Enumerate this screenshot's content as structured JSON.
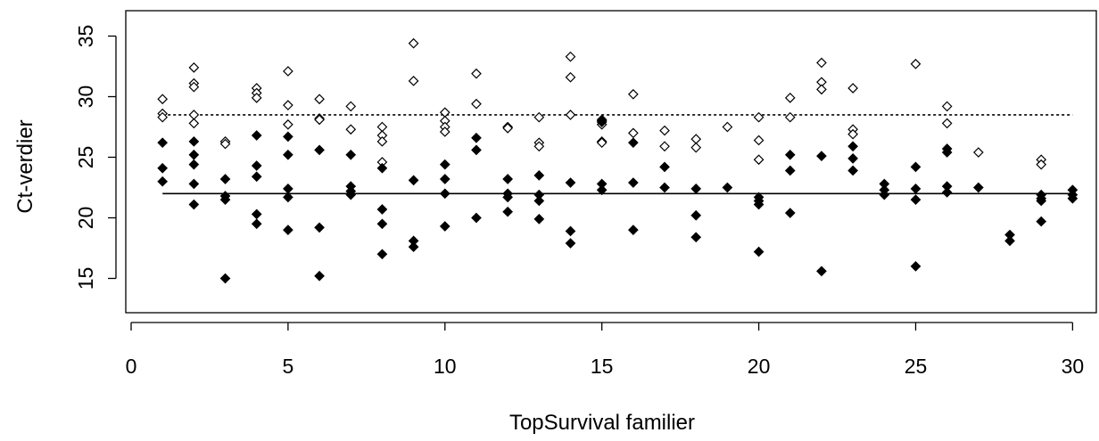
{
  "chart_data": {
    "type": "scatter",
    "title": "",
    "xlabel": "TopSurvival familier",
    "ylabel": "Ct-verdier",
    "xlim": [
      0,
      30
    ],
    "ylim": [
      12.5,
      36
    ],
    "x_ticks": [
      "0",
      "5",
      "10",
      "15",
      "20",
      "25",
      "30"
    ],
    "y_ticks": [
      "15",
      "20",
      "25",
      "30",
      "35"
    ],
    "grid": false,
    "legend": "none",
    "series": [
      {
        "marker": "open-diamond",
        "color": "#000000",
        "points": [
          [
            1,
            29.8
          ],
          [
            1,
            28.6
          ],
          [
            1,
            28.3
          ],
          [
            2,
            32.4
          ],
          [
            2,
            31.1
          ],
          [
            2,
            30.8
          ],
          [
            2,
            28.5
          ],
          [
            2,
            27.8
          ],
          [
            3,
            26.3
          ],
          [
            3,
            26.1
          ],
          [
            4,
            30.7
          ],
          [
            4,
            30.3
          ],
          [
            4,
            29.9
          ],
          [
            5,
            32.1
          ],
          [
            5,
            29.3
          ],
          [
            5,
            27.7
          ],
          [
            6,
            29.8
          ],
          [
            6,
            28.2
          ],
          [
            6,
            28.1
          ],
          [
            7,
            29.2
          ],
          [
            7,
            27.3
          ],
          [
            8,
            27.5
          ],
          [
            8,
            26.8
          ],
          [
            8,
            26.3
          ],
          [
            8,
            24.6
          ],
          [
            9,
            34.4
          ],
          [
            9,
            31.3
          ],
          [
            10,
            28.7
          ],
          [
            10,
            28.0
          ],
          [
            10,
            27.5
          ],
          [
            10,
            27.1
          ],
          [
            11,
            31.9
          ],
          [
            11,
            29.4
          ],
          [
            12,
            27.5
          ],
          [
            12,
            27.4
          ],
          [
            13,
            28.3
          ],
          [
            13,
            26.2
          ],
          [
            13,
            25.9
          ],
          [
            14,
            33.3
          ],
          [
            14,
            31.6
          ],
          [
            14,
            28.5
          ],
          [
            15,
            28.0
          ],
          [
            15,
            27.7
          ],
          [
            15,
            26.3
          ],
          [
            15,
            26.2
          ],
          [
            16,
            30.2
          ],
          [
            16,
            27.0
          ],
          [
            17,
            27.2
          ],
          [
            17,
            25.9
          ],
          [
            18,
            26.5
          ],
          [
            18,
            25.8
          ],
          [
            19,
            27.5
          ],
          [
            20,
            28.3
          ],
          [
            20,
            26.4
          ],
          [
            20,
            24.8
          ],
          [
            21,
            29.9
          ],
          [
            21,
            28.3
          ],
          [
            22,
            32.8
          ],
          [
            22,
            31.2
          ],
          [
            22,
            30.6
          ],
          [
            23,
            30.7
          ],
          [
            23,
            27.3
          ],
          [
            23,
            26.9
          ],
          [
            25,
            32.7
          ],
          [
            26,
            29.2
          ],
          [
            26,
            27.8
          ],
          [
            27,
            25.4
          ],
          [
            29,
            24.8
          ],
          [
            29,
            24.4
          ]
        ]
      },
      {
        "marker": "filled-diamond",
        "color": "#000000",
        "points": [
          [
            1,
            26.2
          ],
          [
            1,
            24.1
          ],
          [
            1,
            23.0
          ],
          [
            2,
            26.3
          ],
          [
            2,
            25.2
          ],
          [
            2,
            24.4
          ],
          [
            2,
            22.8
          ],
          [
            2,
            21.1
          ],
          [
            3,
            23.2
          ],
          [
            3,
            21.8
          ],
          [
            3,
            21.5
          ],
          [
            3,
            15.0
          ],
          [
            4,
            26.8
          ],
          [
            4,
            24.3
          ],
          [
            4,
            23.4
          ],
          [
            4,
            20.3
          ],
          [
            4,
            19.5
          ],
          [
            5,
            26.7
          ],
          [
            5,
            25.2
          ],
          [
            5,
            22.4
          ],
          [
            5,
            21.7
          ],
          [
            5,
            19.0
          ],
          [
            6,
            25.6
          ],
          [
            6,
            19.2
          ],
          [
            6,
            15.2
          ],
          [
            7,
            25.2
          ],
          [
            7,
            22.6
          ],
          [
            7,
            22.2
          ],
          [
            7,
            21.9
          ],
          [
            8,
            24.1
          ],
          [
            8,
            20.7
          ],
          [
            8,
            19.5
          ],
          [
            8,
            17.0
          ],
          [
            9,
            23.1
          ],
          [
            9,
            18.1
          ],
          [
            9,
            17.6
          ],
          [
            10,
            24.4
          ],
          [
            10,
            23.2
          ],
          [
            10,
            22.0
          ],
          [
            10,
            19.3
          ],
          [
            11,
            26.6
          ],
          [
            11,
            25.6
          ],
          [
            11,
            20.0
          ],
          [
            12,
            23.2
          ],
          [
            12,
            22.0
          ],
          [
            12,
            21.7
          ],
          [
            12,
            20.5
          ],
          [
            13,
            23.5
          ],
          [
            13,
            21.9
          ],
          [
            13,
            21.4
          ],
          [
            13,
            19.9
          ],
          [
            14,
            22.9
          ],
          [
            14,
            18.9
          ],
          [
            14,
            17.9
          ],
          [
            15,
            28.1
          ],
          [
            15,
            27.9
          ],
          [
            15,
            22.8
          ],
          [
            15,
            22.3
          ],
          [
            16,
            26.2
          ],
          [
            16,
            22.9
          ],
          [
            16,
            19.0
          ],
          [
            17,
            24.2
          ],
          [
            17,
            22.5
          ],
          [
            18,
            22.4
          ],
          [
            18,
            20.2
          ],
          [
            18,
            18.4
          ],
          [
            19,
            22.5
          ],
          [
            20,
            21.7
          ],
          [
            20,
            21.4
          ],
          [
            20,
            21.1
          ],
          [
            20,
            17.2
          ],
          [
            21,
            25.2
          ],
          [
            21,
            23.9
          ],
          [
            21,
            20.4
          ],
          [
            22,
            25.1
          ],
          [
            22,
            15.6
          ],
          [
            23,
            25.9
          ],
          [
            23,
            24.9
          ],
          [
            23,
            23.9
          ],
          [
            24,
            22.8
          ],
          [
            24,
            22.3
          ],
          [
            24,
            21.9
          ],
          [
            25,
            24.2
          ],
          [
            25,
            22.4
          ],
          [
            25,
            21.5
          ],
          [
            25,
            16.0
          ],
          [
            26,
            25.7
          ],
          [
            26,
            25.4
          ],
          [
            26,
            22.6
          ],
          [
            26,
            22.1
          ],
          [
            27,
            22.5
          ],
          [
            28,
            18.6
          ],
          [
            28,
            18.1
          ],
          [
            29,
            21.9
          ],
          [
            29,
            21.6
          ],
          [
            29,
            21.4
          ],
          [
            29,
            19.7
          ],
          [
            30,
            22.3
          ],
          [
            30,
            21.9
          ],
          [
            30,
            21.6
          ]
        ]
      }
    ],
    "reference_lines": [
      {
        "style": "dotted",
        "y": 28.5,
        "x_range": [
          1,
          30
        ]
      },
      {
        "style": "solid",
        "y": 22.0,
        "x_range": [
          1,
          30
        ]
      }
    ]
  }
}
